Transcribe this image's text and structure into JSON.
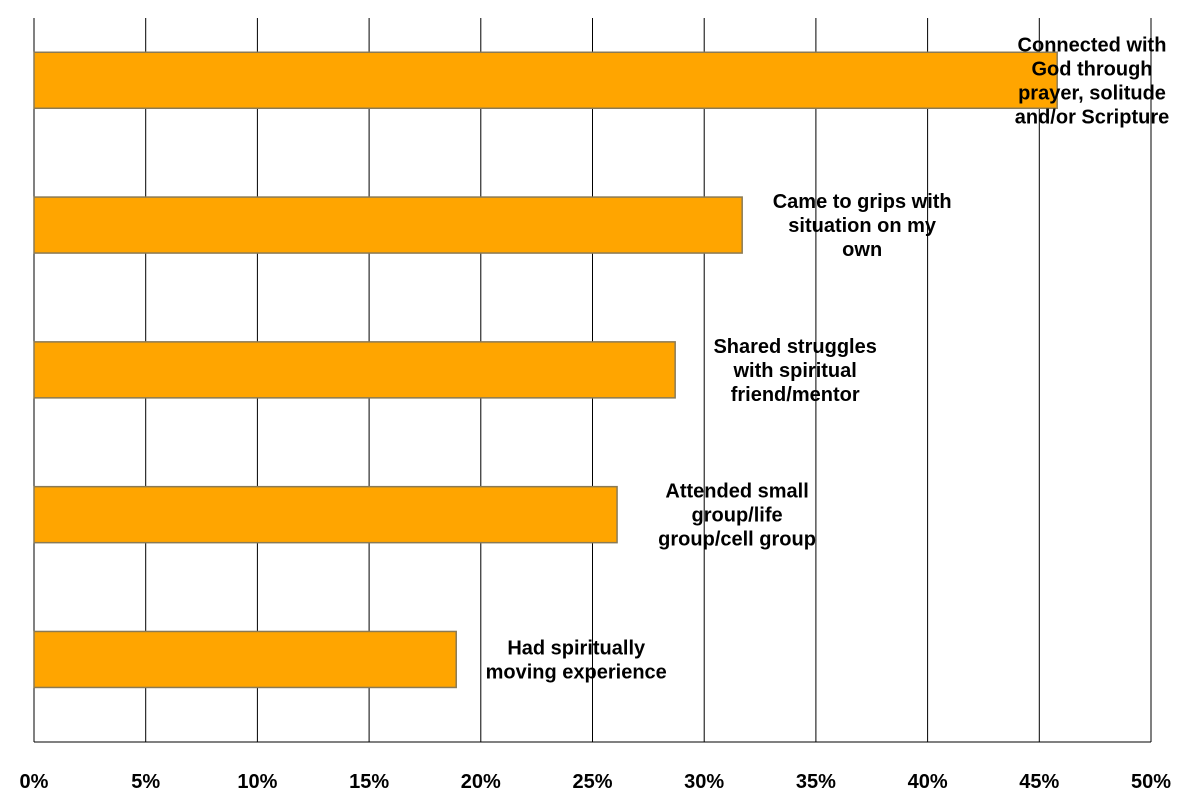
{
  "chart_data": {
    "type": "bar",
    "orientation": "horizontal",
    "categories": [
      [
        "Connected with",
        "God through",
        "prayer, solitude",
        "and/or Scripture"
      ],
      [
        "Came to grips with",
        "situation on my",
        "own"
      ],
      [
        "Shared struggles",
        "with spiritual",
        "friend/mentor"
      ],
      [
        "Attended small",
        "group/life",
        "group/cell group"
      ],
      [
        "Had spiritually",
        "moving experience"
      ]
    ],
    "values": [
      45.8,
      31.7,
      28.7,
      26.1,
      18.9
    ],
    "xlim": [
      0,
      50
    ],
    "xticks": [
      0,
      5,
      10,
      15,
      20,
      25,
      30,
      35,
      40,
      45,
      50
    ],
    "tick_suffix": "%",
    "grid": true,
    "colors": {
      "bar_fill": "#FFA500",
      "bar_stroke": "#8a7a55",
      "grid": "#000000"
    }
  }
}
